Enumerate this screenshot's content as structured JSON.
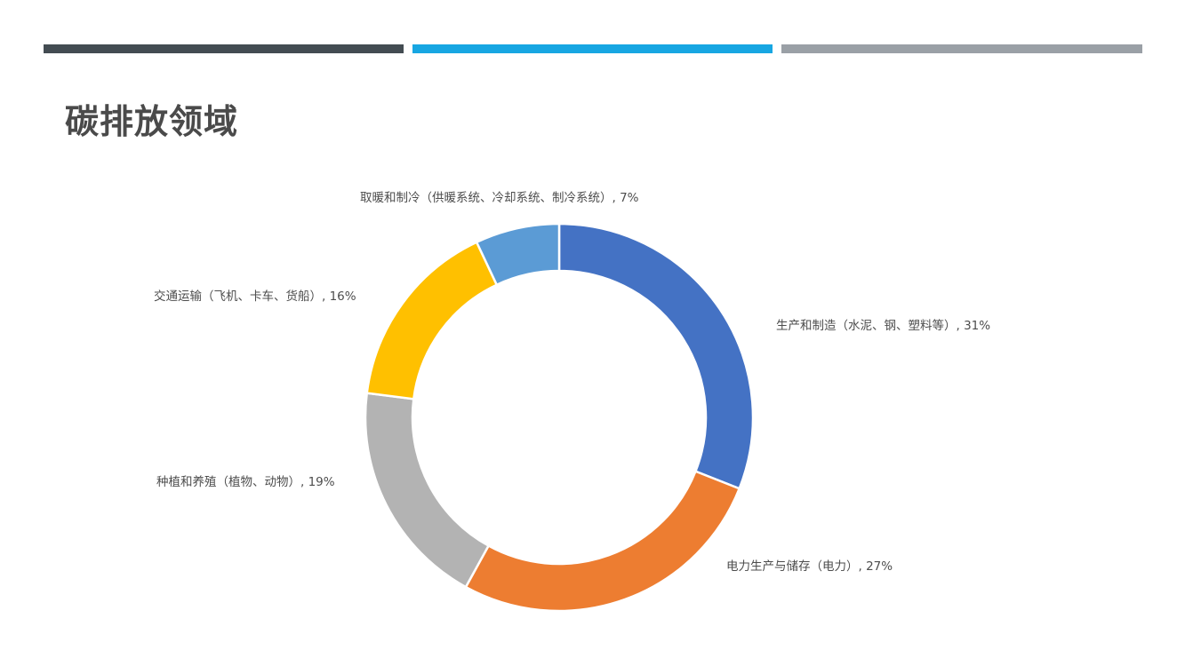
{
  "title": "碳排放领域",
  "top_bars": [
    {
      "color": "#434c52"
    },
    {
      "color": "#17a6e2"
    },
    {
      "color": "#9aa0a6"
    }
  ],
  "chart_data": {
    "type": "pie",
    "variant": "donut",
    "title": "",
    "slices": [
      {
        "label": "生产和制造（水泥、钢、塑料等）",
        "value": 31,
        "display": "生产和制造（水泥、钢、塑料等）, 31%",
        "color": "#4472c4"
      },
      {
        "label": "电力生产与储存（电力）",
        "value": 27,
        "display": "电力生产与储存（电力）, 27%",
        "color": "#ed7d31"
      },
      {
        "label": "种植和养殖（植物、动物）",
        "value": 19,
        "display": "种植和养殖（植物、动物）, 19%",
        "color": "#b3b3b3"
      },
      {
        "label": "交通运输（飞机、卡车、货船）",
        "value": 16,
        "display": "交通运输（飞机、卡车、货船）, 16%",
        "color": "#ffc000"
      },
      {
        "label": "取暖和制冷（供暖系统、冷却系统、制冷系统）",
        "value": 7,
        "display": "取暖和制冷（供暖系统、冷却系统、制冷系统）, 7%",
        "color": "#5b9bd5"
      }
    ],
    "start_angle": "top",
    "direction": "clockwise",
    "legend": "none",
    "data_labels": "outside"
  }
}
